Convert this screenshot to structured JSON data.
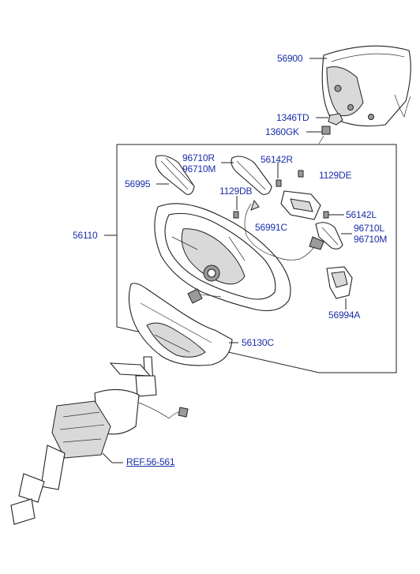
{
  "diagram": {
    "labels": {
      "p56900": "56900",
      "p1346TD": "1346TD",
      "p1360GK": "1360GK",
      "p96710R": "96710R",
      "p96710M_top": "96710M",
      "p56142R": "56142R",
      "p1129DE": "1129DE",
      "p56995": "56995",
      "p1129DB": "1129DB",
      "p56142L": "56142L",
      "p56110": "56110",
      "p56991C": "56991C",
      "p96710L": "96710L",
      "p96710M_right": "96710M",
      "p56994A": "56994A",
      "p56130C": "56130C",
      "ref": "REF.56-561"
    },
    "colors": {
      "label": "#1a2fa8",
      "line": "#222222"
    }
  }
}
